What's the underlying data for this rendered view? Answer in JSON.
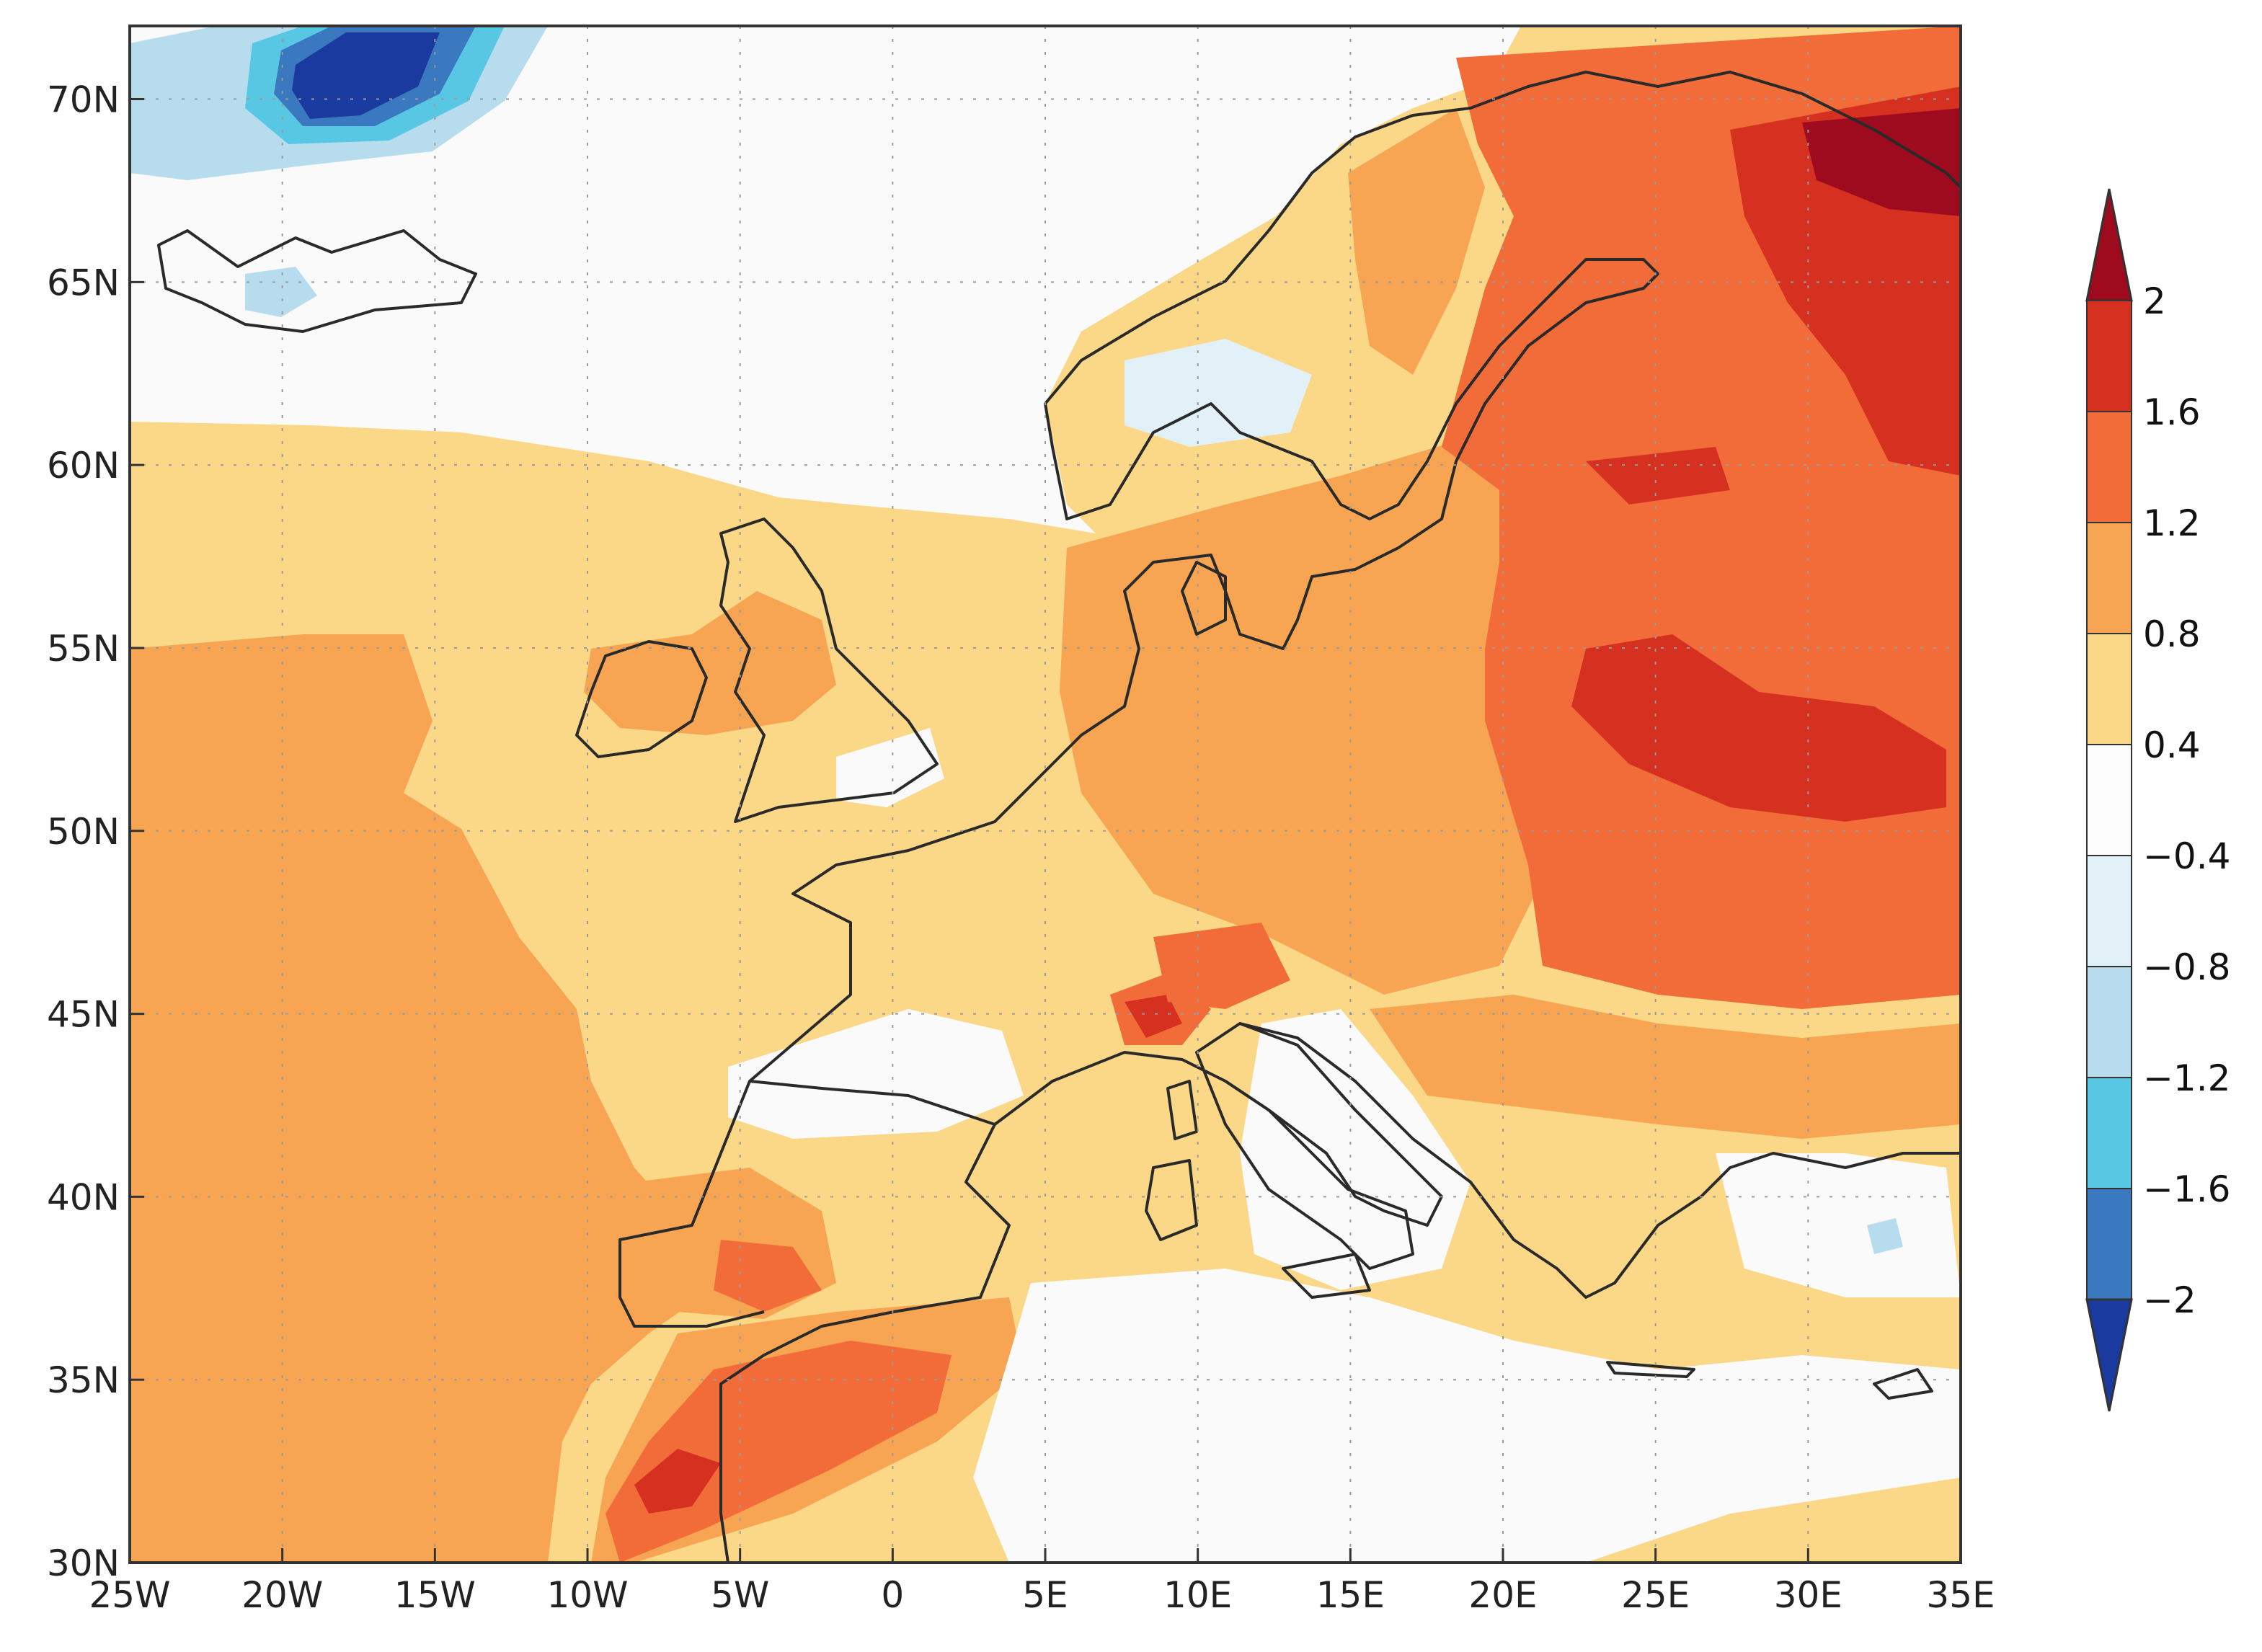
{
  "map": {
    "type": "contour-map",
    "lon_range": [
      -25,
      35
    ],
    "lat_range": [
      30,
      72
    ],
    "x_ticks": [
      "25W",
      "20W",
      "15W",
      "10W",
      "5W",
      "0",
      "5E",
      "10E",
      "15E",
      "20E",
      "25E",
      "30E",
      "35E"
    ],
    "x_tick_values": [
      -25,
      -20,
      -15,
      -10,
      -5,
      0,
      5,
      10,
      15,
      20,
      25,
      30,
      35
    ],
    "y_ticks": [
      "30N",
      "35N",
      "40N",
      "45N",
      "50N",
      "55N",
      "60N",
      "65N",
      "70N"
    ],
    "y_tick_values": [
      30,
      35,
      40,
      45,
      50,
      55,
      60,
      65,
      70
    ],
    "gridlines": "dotted"
  },
  "colorbar": {
    "labels": [
      "2",
      "1.6",
      "1.2",
      "0.8",
      "0.4",
      "−0.4",
      "−0.8",
      "−1.2",
      "−1.6",
      "−2"
    ],
    "colors": [
      "#9e0a1e",
      "#d63020",
      "#f26c3a",
      "#f7a552",
      "#fbd887",
      "#fcfcfc",
      "#e2f1f8",
      "#b7dcee",
      "#58c7e3",
      "#3a78c0",
      "#1b3a9f"
    ],
    "extend": "both"
  }
}
